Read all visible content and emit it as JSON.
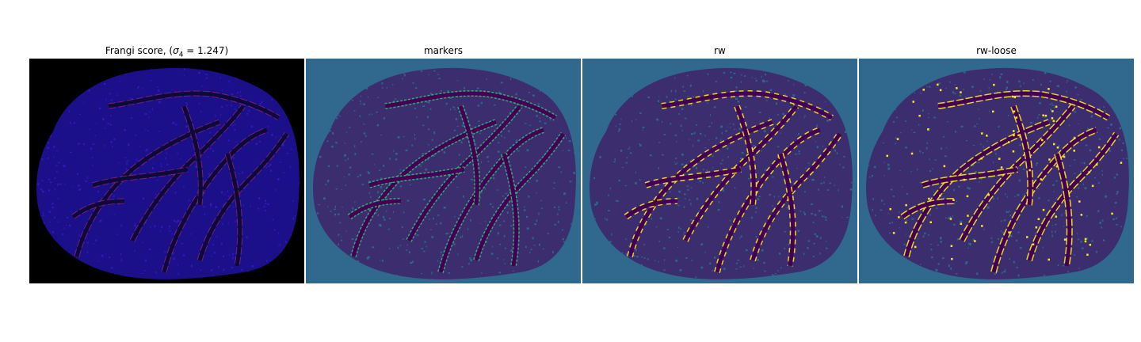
{
  "panels": [
    {
      "title_prefix": "Frangi score, (",
      "title_sigma": "σ",
      "title_sub": "4",
      "title_suffix": " = 1.247)",
      "background": "#000000",
      "blob_color": "#1b0f8a",
      "texture_color": "#3820c8",
      "vessel_color": "#0d0a3a",
      "vessel_edge": "#c0306a"
    },
    {
      "title": "markers",
      "background": "#31688e",
      "blob_color": "#3b2d6e",
      "texture_color": "#26828e",
      "vessel_color": "#440154",
      "vessel_edge": "#35b779"
    },
    {
      "title": "rw",
      "background": "#31688e",
      "blob_color": "#3b2d6e",
      "texture_color": "#26828e",
      "vessel_color": "#440154",
      "vessel_edge": "#fde725"
    },
    {
      "title": "rw-loose",
      "background": "#31688e",
      "blob_color": "#3b2d6e",
      "texture_color": "#26828e",
      "vessel_color": "#440154",
      "vessel_edge": "#fde725"
    }
  ]
}
